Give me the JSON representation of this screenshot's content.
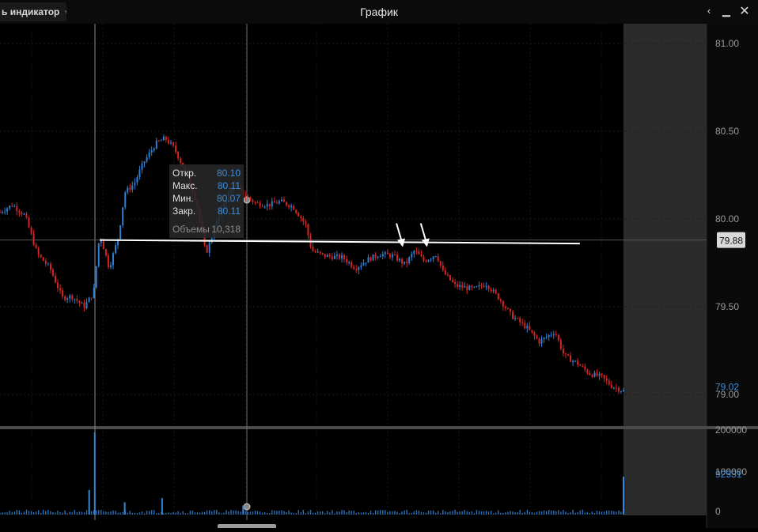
{
  "header": {
    "indicator_button_label": "ь индикатор",
    "title": "График",
    "icons": {
      "back": "chevron-left-icon",
      "minimize": "minimize-icon",
      "maximize": "maximize-icon",
      "close": "close-icon"
    }
  },
  "tooltip": {
    "open_label": "Откр.",
    "open_value": "80.10",
    "high_label": "Макс.",
    "high_value": "80.11",
    "low_label": "Мин.",
    "low_value": "80.07",
    "close_label": "Закр.",
    "close_value": "80.11",
    "volume_label": "Объемы",
    "volume_value": "10,318"
  },
  "chart_data": {
    "type": "candlestick",
    "price_axis": {
      "ticks": [
        "81.00",
        "80.50",
        "80.00",
        "79.50",
        "79.00"
      ],
      "ylim": [
        78.9,
        81.1
      ]
    },
    "volume_axis": {
      "ticks": [
        "200000",
        "100000",
        "0"
      ],
      "ylim": [
        0,
        200000
      ]
    },
    "current_price": "79.88",
    "last_price_label": "79.02",
    "volume_last_label": "92551",
    "price_path": [
      {
        "x": 0,
        "y": 80.04
      },
      {
        "x": 0.02,
        "y": 80.08
      },
      {
        "x": 0.04,
        "y": 80.02
      },
      {
        "x": 0.06,
        "y": 79.8
      },
      {
        "x": 0.08,
        "y": 79.72
      },
      {
        "x": 0.1,
        "y": 79.55
      },
      {
        "x": 0.115,
        "y": 79.56
      },
      {
        "x": 0.135,
        "y": 79.5
      },
      {
        "x": 0.15,
        "y": 79.58
      },
      {
        "x": 0.16,
        "y": 79.92
      },
      {
        "x": 0.175,
        "y": 79.72
      },
      {
        "x": 0.19,
        "y": 79.9
      },
      {
        "x": 0.2,
        "y": 80.15
      },
      {
        "x": 0.215,
        "y": 80.2
      },
      {
        "x": 0.23,
        "y": 80.32
      },
      {
        "x": 0.25,
        "y": 80.43
      },
      {
        "x": 0.265,
        "y": 80.46
      },
      {
        "x": 0.28,
        "y": 80.4
      },
      {
        "x": 0.3,
        "y": 80.25
      },
      {
        "x": 0.315,
        "y": 80.1
      },
      {
        "x": 0.33,
        "y": 79.8
      },
      {
        "x": 0.345,
        "y": 79.95
      },
      {
        "x": 0.36,
        "y": 80.1
      },
      {
        "x": 0.375,
        "y": 80.2
      },
      {
        "x": 0.39,
        "y": 80.14
      },
      {
        "x": 0.41,
        "y": 80.09
      },
      {
        "x": 0.43,
        "y": 80.08
      },
      {
        "x": 0.45,
        "y": 80.1
      },
      {
        "x": 0.47,
        "y": 80.07
      },
      {
        "x": 0.49,
        "y": 79.97
      },
      {
        "x": 0.5,
        "y": 79.82
      },
      {
        "x": 0.52,
        "y": 79.79
      },
      {
        "x": 0.55,
        "y": 79.78
      },
      {
        "x": 0.57,
        "y": 79.72
      },
      {
        "x": 0.59,
        "y": 79.77
      },
      {
        "x": 0.61,
        "y": 79.8
      },
      {
        "x": 0.63,
        "y": 79.79
      },
      {
        "x": 0.65,
        "y": 79.74
      },
      {
        "x": 0.665,
        "y": 79.82
      },
      {
        "x": 0.68,
        "y": 79.76
      },
      {
        "x": 0.7,
        "y": 79.8
      },
      {
        "x": 0.71,
        "y": 79.7
      },
      {
        "x": 0.73,
        "y": 79.62
      },
      {
        "x": 0.76,
        "y": 79.6
      },
      {
        "x": 0.78,
        "y": 79.63
      },
      {
        "x": 0.8,
        "y": 79.55
      },
      {
        "x": 0.82,
        "y": 79.45
      },
      {
        "x": 0.845,
        "y": 79.38
      },
      {
        "x": 0.865,
        "y": 79.3
      },
      {
        "x": 0.89,
        "y": 79.36
      },
      {
        "x": 0.905,
        "y": 79.22
      },
      {
        "x": 0.925,
        "y": 79.18
      },
      {
        "x": 0.945,
        "y": 79.12
      },
      {
        "x": 0.965,
        "y": 79.1
      },
      {
        "x": 0.98,
        "y": 79.05
      },
      {
        "x": 1,
        "y": 79.02
      }
    ],
    "volume_spikes": [
      {
        "x": 0.152,
        "v": 200000
      },
      {
        "x": 0.143,
        "v": 60000
      },
      {
        "x": 0.26,
        "v": 40000
      },
      {
        "x": 0.2,
        "v": 30000
      },
      {
        "x": 0.39,
        "v": 22000
      },
      {
        "x": 1,
        "v": 92551
      }
    ],
    "support_line": {
      "from": {
        "x": 0.16,
        "y": 79.88
      },
      "to": {
        "x": 0.93,
        "y": 79.86
      }
    },
    "arrows": [
      {
        "x": 0.646,
        "y": 79.84
      },
      {
        "x": 0.685,
        "y": 79.84
      }
    ]
  }
}
